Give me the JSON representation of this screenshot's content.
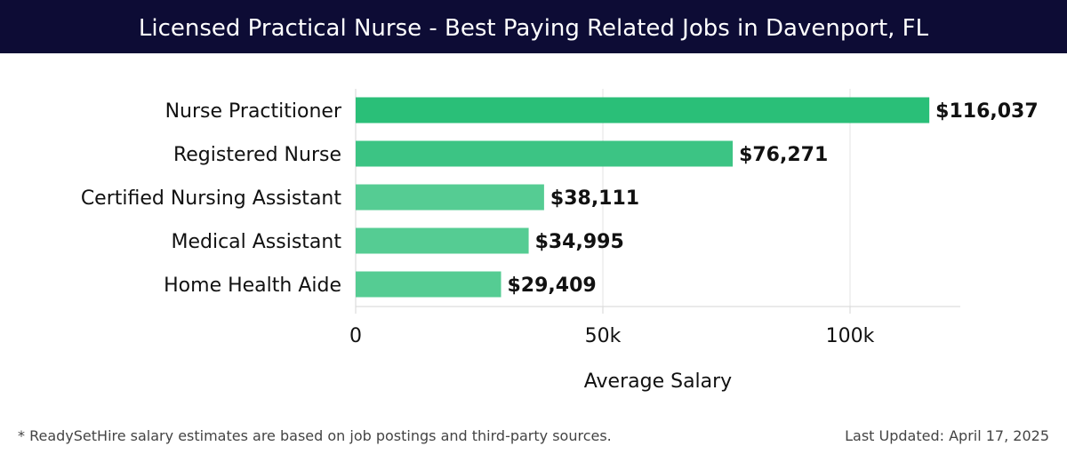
{
  "header": {
    "title": "Licensed Practical Nurse - Best Paying Related Jobs in Davenport, FL"
  },
  "chart_data": {
    "type": "bar",
    "orientation": "horizontal",
    "title": "Licensed Practical Nurse - Best Paying Related Jobs in Davenport, FL",
    "categories": [
      "Nurse Practitioner",
      "Registered Nurse",
      "Certified Nursing Assistant",
      "Medical Assistant",
      "Home Health Aide"
    ],
    "values": [
      116037,
      76271,
      38111,
      34995,
      29409
    ],
    "value_labels": [
      "$116,037",
      "$76,271",
      "$38,111",
      "$34,995",
      "$29,409"
    ],
    "xlabel": "Average Salary",
    "ylabel": "",
    "xlim": [
      0,
      122000
    ],
    "xticks": [
      0,
      50000,
      100000
    ],
    "xtick_labels": [
      "0",
      "50k",
      "100k"
    ],
    "grid": true,
    "colors": [
      "#2abf78",
      "#3cc484",
      "#55cc93",
      "#55cc93",
      "#55cc93"
    ]
  },
  "footer": {
    "note": "* ReadySetHire salary estimates are based on job postings and third-party sources.",
    "updated": "Last Updated: April 17, 2025"
  }
}
